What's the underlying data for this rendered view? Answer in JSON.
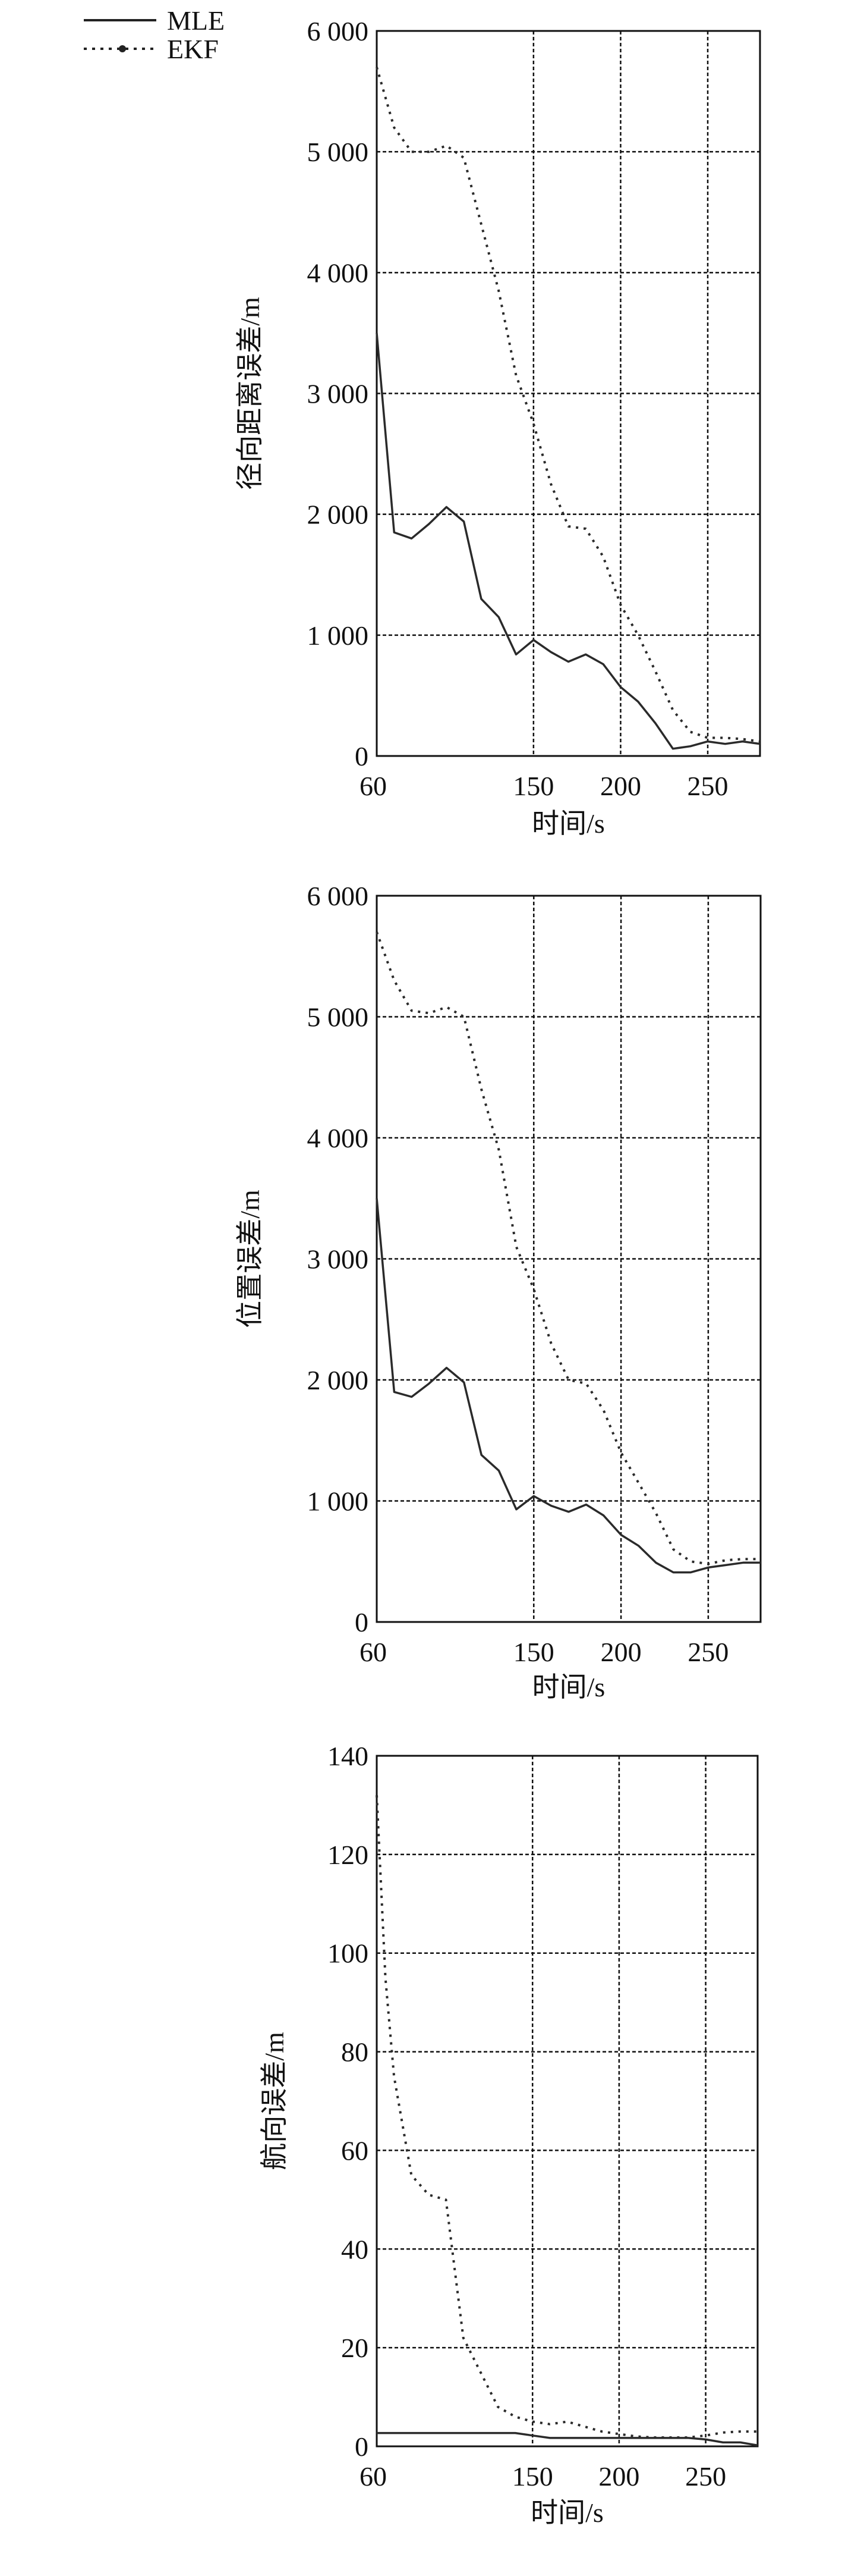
{
  "legend": {
    "placement": "top-left",
    "items": [
      {
        "name": "MLE",
        "style": "solid"
      },
      {
        "name": "EKF",
        "style": "dotted"
      }
    ]
  },
  "colors": {
    "line": "#222222",
    "grid": "#111111",
    "axis": "#111111"
  },
  "chart_data": [
    {
      "type": "line",
      "title": "",
      "xlabel": "时间/s",
      "ylabel": "径向距离误差/m",
      "xlim": [
        60,
        280
      ],
      "ylim": [
        0,
        6000
      ],
      "grid": true,
      "xticks": [
        60,
        150,
        200,
        250
      ],
      "xtick_labels": [
        "60",
        "150",
        "200",
        "250"
      ],
      "yticks": [
        0,
        1000,
        2000,
        3000,
        4000,
        5000,
        6000
      ],
      "ytick_labels": [
        "0",
        "1 000",
        "2 000",
        "3 000",
        "4 000",
        "5 000",
        "6 000"
      ],
      "x": [
        60,
        70,
        80,
        90,
        100,
        110,
        120,
        130,
        140,
        150,
        160,
        170,
        180,
        190,
        200,
        210,
        220,
        230,
        240,
        250,
        260,
        270,
        280
      ],
      "series": [
        {
          "name": "MLE",
          "values": [
            3500,
            1850,
            1800,
            1920,
            2060,
            1940,
            1300,
            1150,
            840,
            960,
            860,
            780,
            840,
            760,
            570,
            450,
            270,
            60,
            80,
            120,
            100,
            120,
            100
          ]
        },
        {
          "name": "EKF",
          "values": [
            5700,
            5200,
            5000,
            5000,
            5050,
            4950,
            4400,
            3850,
            3150,
            2750,
            2250,
            1900,
            1880,
            1650,
            1250,
            1000,
            700,
            380,
            200,
            150,
            150,
            140,
            120
          ]
        }
      ]
    },
    {
      "type": "line",
      "title": "",
      "xlabel": "时间/s",
      "ylabel": "位置误差/m",
      "xlim": [
        60,
        280
      ],
      "ylim": [
        0,
        6000
      ],
      "grid": true,
      "xticks": [
        60,
        150,
        200,
        250
      ],
      "xtick_labels": [
        "60",
        "150",
        "200",
        "250"
      ],
      "yticks": [
        0,
        1000,
        2000,
        3000,
        4000,
        5000,
        6000
      ],
      "ytick_labels": [
        "0",
        "1 000",
        "2 000",
        "3 000",
        "4 000",
        "5 000",
        "6 000"
      ],
      "x": [
        60,
        70,
        80,
        90,
        100,
        110,
        120,
        130,
        140,
        150,
        160,
        170,
        180,
        190,
        200,
        210,
        220,
        230,
        240,
        250,
        260,
        270,
        280
      ],
      "series": [
        {
          "name": "MLE",
          "values": [
            3500,
            1900,
            1860,
            1970,
            2100,
            1980,
            1380,
            1250,
            930,
            1040,
            960,
            910,
            970,
            880,
            720,
            630,
            490,
            410,
            410,
            450,
            470,
            490,
            490
          ]
        },
        {
          "name": "EKF",
          "values": [
            5700,
            5300,
            5050,
            5030,
            5080,
            5000,
            4400,
            3900,
            3100,
            2750,
            2300,
            2000,
            1970,
            1750,
            1400,
            1150,
            900,
            600,
            500,
            480,
            510,
            520,
            520
          ]
        }
      ]
    },
    {
      "type": "line",
      "title": "",
      "xlabel": "时间/s",
      "ylabel": "航向误差/m",
      "xlim": [
        60,
        280
      ],
      "ylim": [
        0,
        140
      ],
      "grid": true,
      "xticks": [
        60,
        150,
        200,
        250
      ],
      "xtick_labels": [
        "60",
        "150",
        "200",
        "250"
      ],
      "yticks": [
        0,
        20,
        40,
        60,
        80,
        100,
        120,
        140
      ],
      "ytick_labels": [
        "0",
        "20",
        "40",
        "60",
        "80",
        "100",
        "120",
        "140"
      ],
      "x": [
        60,
        65,
        70,
        80,
        90,
        100,
        110,
        120,
        130,
        140,
        150,
        160,
        170,
        180,
        190,
        200,
        210,
        220,
        230,
        240,
        250,
        260,
        270,
        280
      ],
      "series": [
        {
          "name": "MLE",
          "values": [
            2.7,
            2.7,
            2.7,
            2.7,
            2.7,
            2.7,
            2.7,
            2.7,
            2.7,
            2.7,
            2.2,
            1.7,
            1.7,
            1.7,
            1.7,
            1.7,
            1.7,
            1.7,
            1.7,
            1.7,
            1.4,
            0.8,
            0.8,
            0.2
          ]
        },
        {
          "name": "EKF",
          "values": [
            132,
            95,
            75,
            55,
            51,
            50,
            22,
            15,
            8,
            6,
            5,
            4.5,
            5,
            4,
            3,
            2.5,
            2,
            1.8,
            1.8,
            1.8,
            2.2,
            2.8,
            3,
            3
          ]
        }
      ]
    }
  ]
}
